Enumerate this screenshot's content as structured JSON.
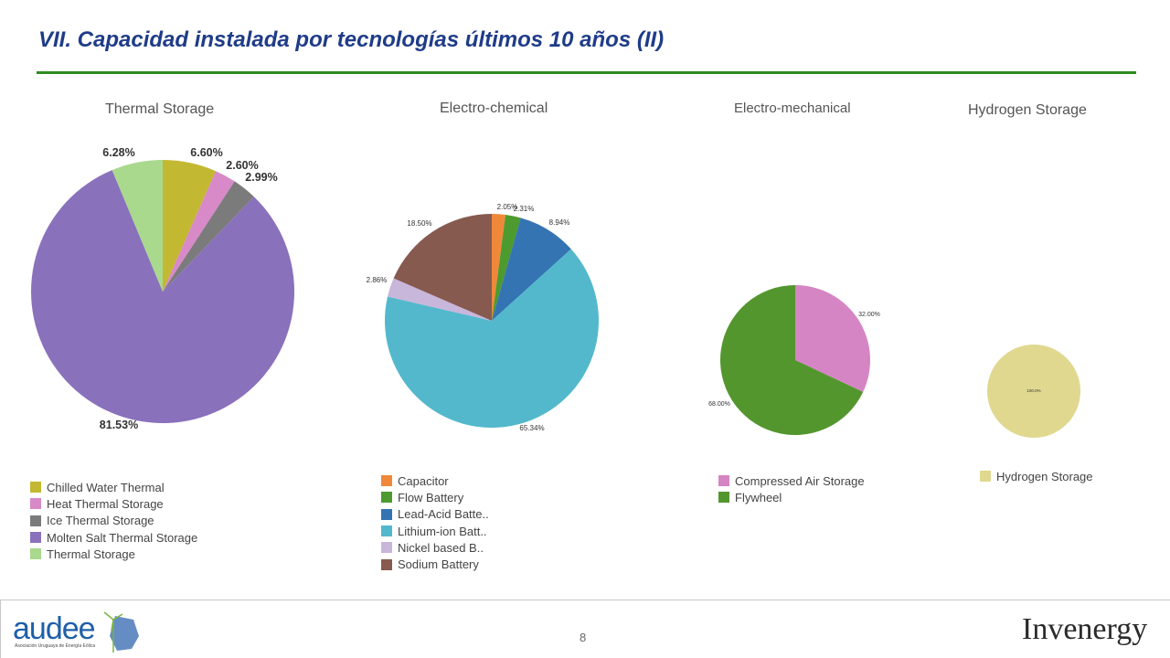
{
  "slide": {
    "title": "VII.  Capacidad instalada por tecnologías últimos 10 años (II)",
    "page_number": "8"
  },
  "logos": {
    "left_wordmark": "audee",
    "left_subtitle": "Asociación Uruguaya de Energía Eólica",
    "right_wordmark": "Invenergy"
  },
  "colors": {
    "title": "#1f3c88",
    "rule": "#2e8b1f"
  },
  "chart_data": [
    {
      "type": "pie",
      "title": "Thermal Storage",
      "series": [
        {
          "label": "Chilled Water Thermal",
          "value": 6.6,
          "display": "6.60%",
          "color": "#c3b831"
        },
        {
          "label": "Heat Thermal Storage",
          "value": 2.6,
          "display": "2.60%",
          "color": "#d889c8"
        },
        {
          "label": "Ice Thermal Storage",
          "value": 2.99,
          "display": "2.99%",
          "color": "#7b7b7b"
        },
        {
          "label": "Molten Salt Thermal Storage",
          "value": 81.53,
          "display": "81.53%",
          "color": "#8a71bc"
        },
        {
          "label": "Thermal Storage",
          "value": 6.28,
          "display": "6.28%",
          "color": "#a9d98d"
        }
      ],
      "legend_position": "bottom-left"
    },
    {
      "type": "pie",
      "title": "Electro-chemical",
      "series": [
        {
          "label": "Capacitor",
          "value": 2.05,
          "display": "2.05%",
          "color": "#f0883a"
        },
        {
          "label": "Flow Battery",
          "value": 2.31,
          "display": "2.31%",
          "color": "#4d9a2e"
        },
        {
          "label": "Lead-Acid Batte..",
          "value": 8.94,
          "display": "8.94%",
          "color": "#3474b3"
        },
        {
          "label": "Lithium-ion Batt..",
          "value": 65.34,
          "display": "65.34%",
          "color": "#53b8cc"
        },
        {
          "label": "Nickel based B..",
          "value": 2.86,
          "display": "2.86%",
          "color": "#c8b6db"
        },
        {
          "label": "Sodium Battery",
          "value": 18.5,
          "display": "18.50%",
          "color": "#875a50"
        }
      ],
      "legend_position": "bottom-left"
    },
    {
      "type": "pie",
      "title": "Electro-mechanical",
      "series": [
        {
          "label": "Compressed Air Storage",
          "value": 32.0,
          "display": "32.00%",
          "color": "#d685c4"
        },
        {
          "label": "Flywheel",
          "value": 68.0,
          "display": "68.00%",
          "color": "#53962e"
        }
      ],
      "legend_position": "bottom-left"
    },
    {
      "type": "pie",
      "title": "Hydrogen Storage",
      "series": [
        {
          "label": "Hydrogen Storage",
          "value": 100.0,
          "display": "100.0%",
          "color": "#e0d88f"
        }
      ],
      "legend_position": "bottom-left"
    }
  ]
}
